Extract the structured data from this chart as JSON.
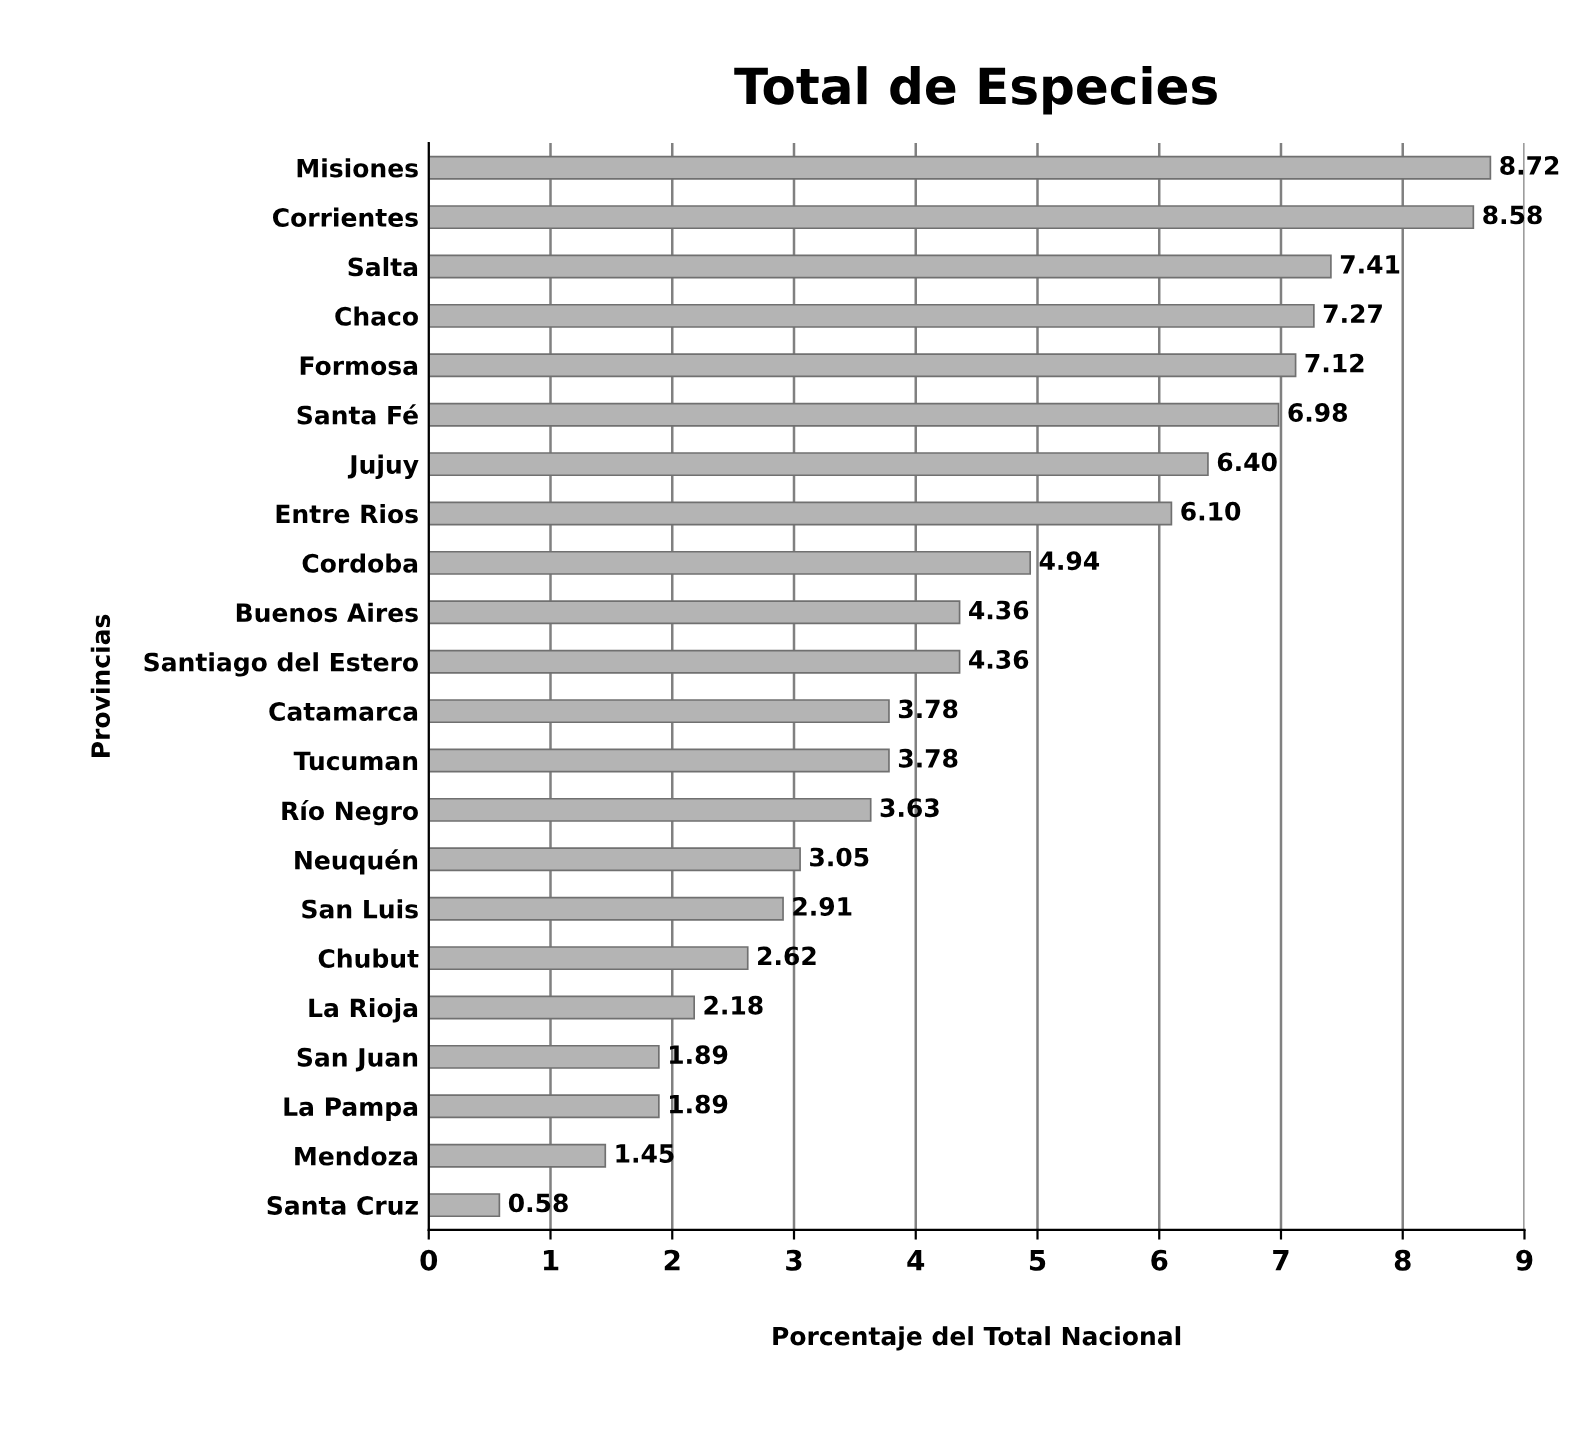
{
  "chart_data": {
    "type": "bar",
    "orientation": "horizontal",
    "title": "Total de Especies",
    "xlabel": "Porcentaje del Total Nacional",
    "ylabel": "Provincias",
    "categories": [
      "Misiones",
      "Corrientes",
      "Salta",
      "Chaco",
      "Formosa",
      "Santa Fé",
      "Jujuy",
      "Entre Rios",
      "Cordoba",
      "Buenos Aires",
      "Santiago del Estero",
      "Catamarca",
      "Tucuman",
      "Río Negro",
      "Neuquén",
      "San Luis",
      "Chubut",
      "La Rioja",
      "San Juan",
      "La Pampa",
      "Mendoza",
      "Santa Cruz"
    ],
    "values": [
      8.72,
      8.58,
      7.41,
      7.27,
      7.12,
      6.98,
      6.4,
      6.1,
      4.94,
      4.36,
      4.36,
      3.78,
      3.78,
      3.63,
      3.05,
      2.91,
      2.62,
      2.18,
      1.89,
      1.89,
      1.45,
      0.58
    ],
    "value_labels": [
      "8.72",
      "8.58",
      "7.41",
      "7.27",
      "7.12",
      "6.98",
      "6.40",
      "6.10",
      "4.94",
      "4.36",
      "4.36",
      "3.78",
      "3.78",
      "3.63",
      "3.05",
      "2.91",
      "2.62",
      "2.18",
      "1.89",
      "1.89",
      "1.45",
      "0.58"
    ],
    "color": "#b4b4b4",
    "xlim": [
      0,
      9
    ],
    "xticks": [
      0,
      1,
      2,
      3,
      4,
      5,
      6,
      7,
      8,
      9
    ],
    "grid": "x"
  }
}
